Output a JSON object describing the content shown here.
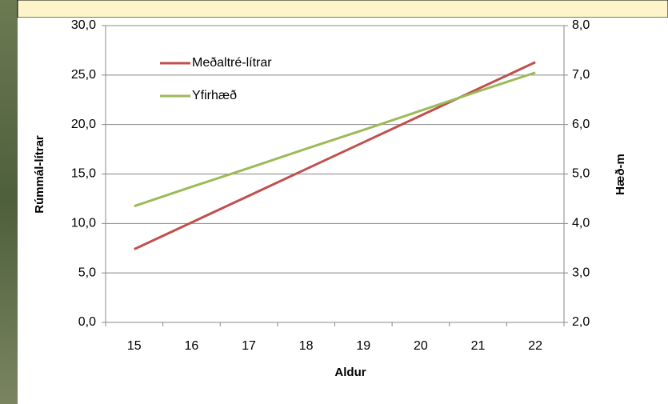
{
  "chart_data": {
    "type": "line",
    "categories": [
      15,
      16,
      17,
      18,
      19,
      20,
      21,
      22
    ],
    "series": [
      {
        "name": "Meðaltré-lítrar",
        "color": "#c0504d",
        "values": [
          7.4,
          10.1,
          12.8,
          15.5,
          18.2,
          20.9,
          23.6,
          26.3
        ]
      },
      {
        "name": "Yfirhæð",
        "color": "#9bbb59",
        "axis": "y2",
        "values": [
          4.35,
          4.74,
          5.12,
          5.51,
          5.89,
          6.28,
          6.67,
          7.05
        ]
      }
    ],
    "x_label": "Aldur",
    "y_label": "Rúmmál-lítrar",
    "y2_label": "Hæð-m",
    "ylim": [
      0,
      30
    ],
    "yticks": [
      {
        "value": 0,
        "label": "0,0"
      },
      {
        "value": 5,
        "label": "5,0"
      },
      {
        "value": 10,
        "label": "10,0"
      },
      {
        "value": 15,
        "label": "15,0"
      },
      {
        "value": 20,
        "label": "20,0"
      },
      {
        "value": 25,
        "label": "25,0"
      },
      {
        "value": 30,
        "label": "30,0"
      }
    ],
    "y2lim": [
      2,
      8
    ],
    "y2ticks": [
      {
        "value": 2,
        "label": "2,0"
      },
      {
        "value": 3,
        "label": "3,0"
      },
      {
        "value": 4,
        "label": "4,0"
      },
      {
        "value": 5,
        "label": "5,0"
      },
      {
        "value": 6,
        "label": "6,0"
      },
      {
        "value": 7,
        "label": "7,0"
      },
      {
        "value": 8,
        "label": "8,0"
      }
    ],
    "grid": true,
    "legend": "top-left"
  }
}
